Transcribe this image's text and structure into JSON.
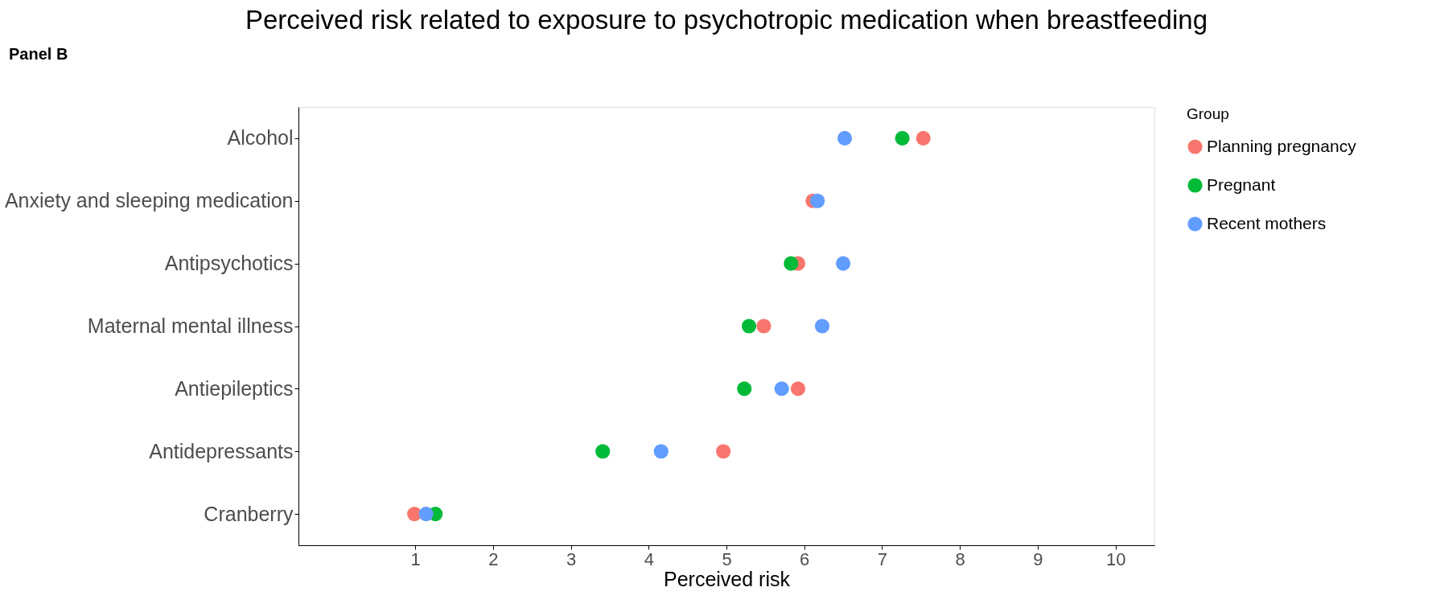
{
  "chart_data": {
    "type": "scatter",
    "title": "Perceived risk related to exposure to psychotropic medication when breastfeeding",
    "xlabel": "Perceived risk",
    "annotations": [
      "Panel B"
    ],
    "legend_title": "Group",
    "legend": "right",
    "marker": "circle",
    "grid": false,
    "orientation": "horizontal",
    "categories": [
      "Alcohol",
      "Anxiety and sleeping medication",
      "Antipsychotics",
      "Maternal mental illness",
      "Antiepileptics",
      "Antidepressants",
      "Cranberry"
    ],
    "xlim": [
      -0.5,
      10.5
    ],
    "xticks": [
      1,
      2,
      3,
      4,
      5,
      6,
      7,
      8,
      9,
      10
    ],
    "series": [
      {
        "name": "Planning pregnancy",
        "color": "#f8766d",
        "values": [
          7.53,
          6.11,
          5.92,
          5.48,
          5.92,
          4.96,
          0.99
        ]
      },
      {
        "name": "Pregnant",
        "color": "#00ba38",
        "values": [
          7.26,
          null,
          5.83,
          5.29,
          5.23,
          3.41,
          1.26
        ]
      },
      {
        "name": "Recent mothers",
        "color": "#619cff",
        "values": [
          6.52,
          6.17,
          6.5,
          6.23,
          5.71,
          4.16,
          1.14
        ]
      }
    ]
  }
}
